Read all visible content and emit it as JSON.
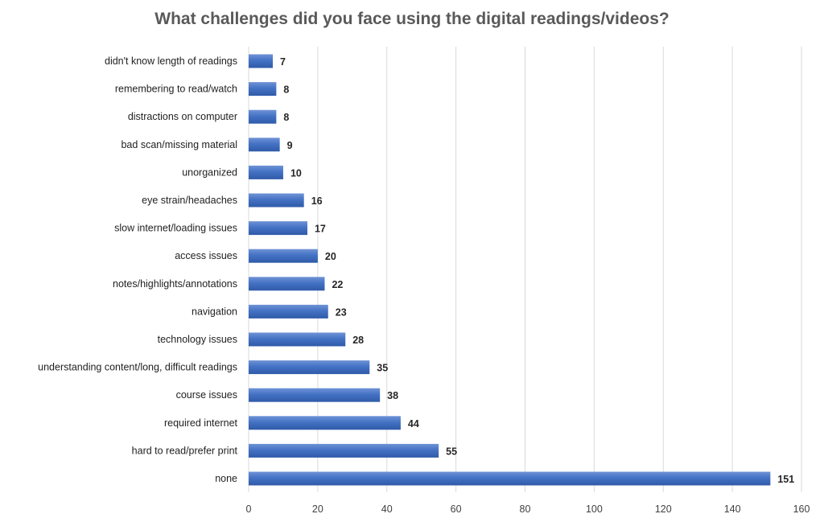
{
  "chart_data": {
    "type": "bar",
    "orientation": "horizontal",
    "title": "What challenges did you face using the digital readings/videos?",
    "xlabel": "",
    "ylabel": "",
    "xlim": [
      0,
      160
    ],
    "x_ticks": [
      0,
      20,
      40,
      60,
      80,
      100,
      120,
      140,
      160
    ],
    "grid": true,
    "legend": "none",
    "bar_color": "#4472C4",
    "categories": [
      "didn't know length of readings",
      "remembering to read/watch",
      "distractions on computer",
      "bad scan/missing material",
      "unorganized",
      "eye strain/headaches",
      "slow internet/loading issues",
      "access issues",
      "notes/highlights/annotations",
      "navigation",
      "technology issues",
      "understanding content/long, difficult readings",
      "course issues",
      "required internet",
      "hard to read/prefer print",
      "none"
    ],
    "values": [
      7,
      8,
      8,
      9,
      10,
      16,
      17,
      20,
      22,
      23,
      28,
      35,
      38,
      44,
      55,
      151
    ]
  }
}
